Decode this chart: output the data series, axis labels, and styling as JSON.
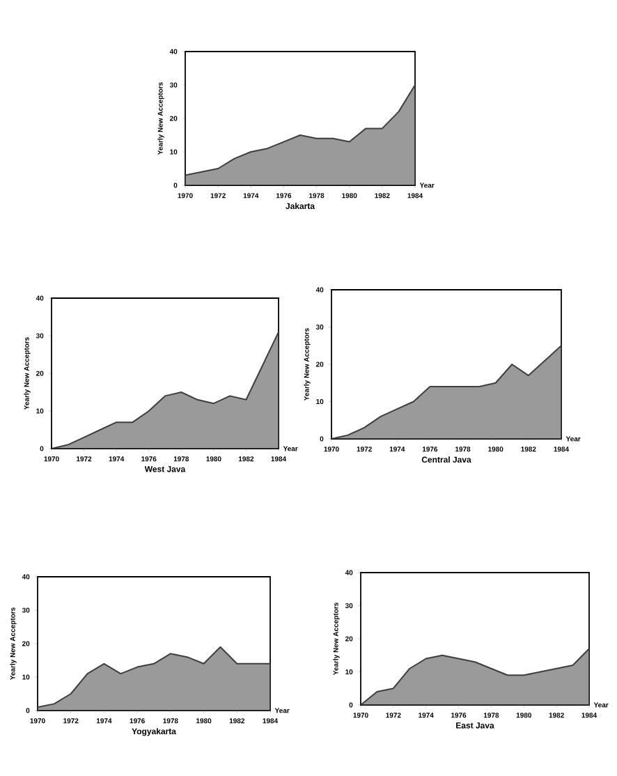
{
  "chart_data": [
    {
      "type": "area",
      "title": "Jakarta",
      "xlabel": "Year",
      "ylabel": "Yearly New Acceptors",
      "x": [
        1970,
        1971,
        1972,
        1973,
        1974,
        1975,
        1976,
        1977,
        1978,
        1979,
        1980,
        1981,
        1982,
        1983,
        1984
      ],
      "values": [
        3,
        4,
        5,
        8,
        10,
        11,
        13,
        15,
        14,
        14,
        13,
        17,
        17,
        22,
        30
      ],
      "color": "#9a9a9a",
      "xlim": [
        1970,
        1984
      ],
      "ylim": [
        0,
        40
      ],
      "xticks": [
        1970,
        1972,
        1974,
        1976,
        1978,
        1980,
        1982,
        1984
      ],
      "yticks": [
        0,
        10,
        20,
        30,
        40
      ]
    },
    {
      "type": "area",
      "title": "West Java",
      "xlabel": "Year",
      "ylabel": "Yearly New Acceptors",
      "x": [
        1970,
        1971,
        1972,
        1973,
        1974,
        1975,
        1976,
        1977,
        1978,
        1979,
        1980,
        1981,
        1982,
        1983,
        1984
      ],
      "values": [
        0,
        1,
        3,
        5,
        7,
        7,
        10,
        14,
        15,
        13,
        12,
        14,
        13,
        22,
        31
      ],
      "color": "#9a9a9a",
      "xlim": [
        1970,
        1984
      ],
      "ylim": [
        0,
        40
      ],
      "xticks": [
        1970,
        1972,
        1974,
        1976,
        1978,
        1980,
        1982,
        1984
      ],
      "yticks": [
        0,
        10,
        20,
        30,
        40
      ]
    },
    {
      "type": "area",
      "title": "Central Java",
      "xlabel": "Year",
      "ylabel": "Yearly New Acceptors",
      "x": [
        1970,
        1971,
        1972,
        1973,
        1974,
        1975,
        1976,
        1977,
        1978,
        1979,
        1980,
        1981,
        1982,
        1983,
        1984
      ],
      "values": [
        0,
        1,
        3,
        6,
        8,
        10,
        14,
        14,
        14,
        14,
        15,
        20,
        17,
        21,
        25
      ],
      "color": "#9a9a9a",
      "xlim": [
        1970,
        1984
      ],
      "ylim": [
        0,
        40
      ],
      "xticks": [
        1970,
        1972,
        1974,
        1976,
        1978,
        1980,
        1982,
        1984
      ],
      "yticks": [
        0,
        10,
        20,
        30,
        40
      ]
    },
    {
      "type": "area",
      "title": "Yogyakarta",
      "xlabel": "Year",
      "ylabel": "Yearly New Acceptors",
      "x": [
        1970,
        1971,
        1972,
        1973,
        1974,
        1975,
        1976,
        1977,
        1978,
        1979,
        1980,
        1981,
        1982,
        1983,
        1984
      ],
      "values": [
        1,
        2,
        5,
        11,
        14,
        11,
        13,
        14,
        17,
        16,
        14,
        19,
        14,
        14,
        14
      ],
      "color": "#9a9a9a",
      "xlim": [
        1970,
        1984
      ],
      "ylim": [
        0,
        40
      ],
      "xticks": [
        1970,
        1972,
        1974,
        1976,
        1978,
        1980,
        1982,
        1984
      ],
      "yticks": [
        0,
        10,
        20,
        30,
        40
      ]
    },
    {
      "type": "area",
      "title": "East Java",
      "xlabel": "Year",
      "ylabel": "Yearly New Acceptors",
      "x": [
        1970,
        1971,
        1972,
        1973,
        1974,
        1975,
        1976,
        1977,
        1978,
        1979,
        1980,
        1981,
        1982,
        1983,
        1984
      ],
      "values": [
        0,
        4,
        5,
        11,
        14,
        15,
        14,
        13,
        11,
        9,
        9,
        10,
        11,
        12,
        17
      ],
      "color": "#9a9a9a",
      "xlim": [
        1970,
        1984
      ],
      "ylim": [
        0,
        40
      ],
      "xticks": [
        1970,
        1972,
        1974,
        1976,
        1978,
        1980,
        1982,
        1984
      ],
      "yticks": [
        0,
        10,
        20,
        30,
        40
      ]
    }
  ]
}
